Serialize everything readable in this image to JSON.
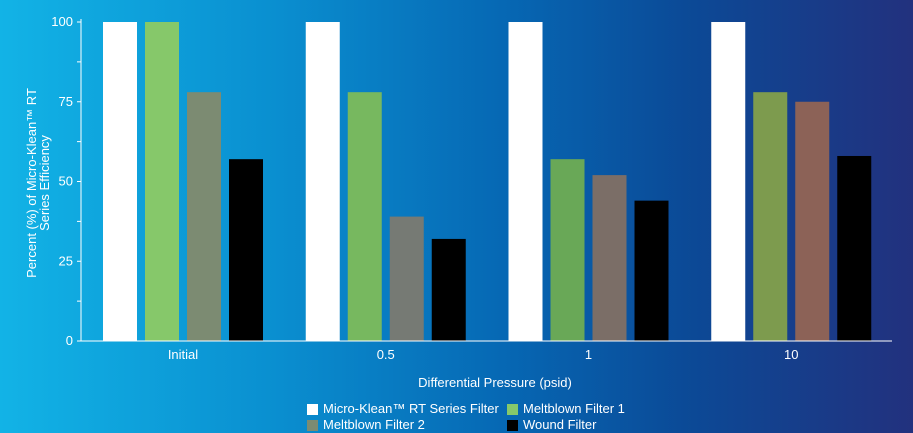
{
  "chart_data": {
    "type": "bar",
    "categories": [
      "Initial",
      "0.5",
      "1",
      "10"
    ],
    "series": [
      {
        "name": "Micro-Klean™ RT Series Filter",
        "color": "#ffffff",
        "values": [
          100,
          100,
          100,
          100
        ]
      },
      {
        "name": "Meltblown Filter 1",
        "values": [
          100,
          78,
          57,
          78
        ],
        "colors": [
          "#86c86a",
          "#77b85f",
          "#69a857",
          "#7d9b4e"
        ]
      },
      {
        "name": "Meltblown Filter 2",
        "values": [
          78,
          39,
          52,
          75
        ],
        "colors": [
          "#7c8b72",
          "#767a74",
          "#7b6e67",
          "#8c6257"
        ]
      },
      {
        "name": "Wound Filter",
        "color": "#000000",
        "values": [
          57,
          32,
          44,
          58
        ]
      }
    ],
    "xlabel": "Differential Pressure (psid)",
    "ylabel_lines": [
      "Percent (%) of Micro-Klean™ RT",
      "Series Efficiency"
    ],
    "ylim": [
      0,
      100
    ],
    "yticks": [
      0,
      25,
      50,
      75,
      100
    ],
    "grid": false,
    "legend_position": "bottom"
  },
  "legend": {
    "items": [
      {
        "label": "Micro-Klean™ RT Series Filter",
        "color": "#ffffff"
      },
      {
        "label": "Meltblown Filter 1",
        "color": "#86c86a"
      },
      {
        "label": "Meltblown Filter 2",
        "color": "#7c8b72"
      },
      {
        "label": "Wound Filter",
        "color": "#000000"
      }
    ]
  }
}
